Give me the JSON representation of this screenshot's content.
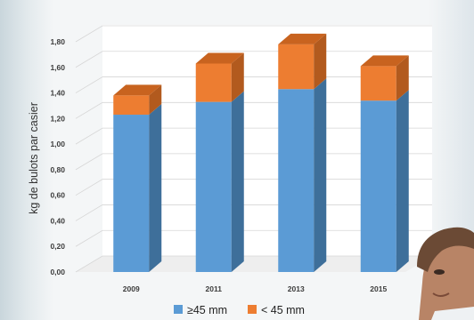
{
  "chart_data": {
    "type": "bar",
    "stacked": true,
    "three_d": true,
    "categories": [
      "2009",
      "2011",
      "2013",
      "2015"
    ],
    "series": [
      {
        "name": "≥45 mm",
        "color": "#5b9bd5",
        "side_color": "#3e6f9a",
        "top_color": "#7fb2e0",
        "values": [
          1.23,
          1.33,
          1.43,
          1.34
        ]
      },
      {
        "name": "< 45 mm",
        "color": "#ed7d31",
        "side_color": "#b25a1e",
        "top_color": "#c8631f",
        "values": [
          0.15,
          0.3,
          0.35,
          0.27
        ]
      }
    ],
    "ylabel": "kg de bulots par casier",
    "xlabel": "",
    "ylim": [
      0,
      1.8
    ],
    "yticks": [
      "0,00",
      "0,20",
      "0,40",
      "0,60",
      "0,80",
      "1,00",
      "1,20",
      "1,40",
      "1,60",
      "1,80"
    ],
    "grid": true,
    "legend_position": "bottom"
  }
}
